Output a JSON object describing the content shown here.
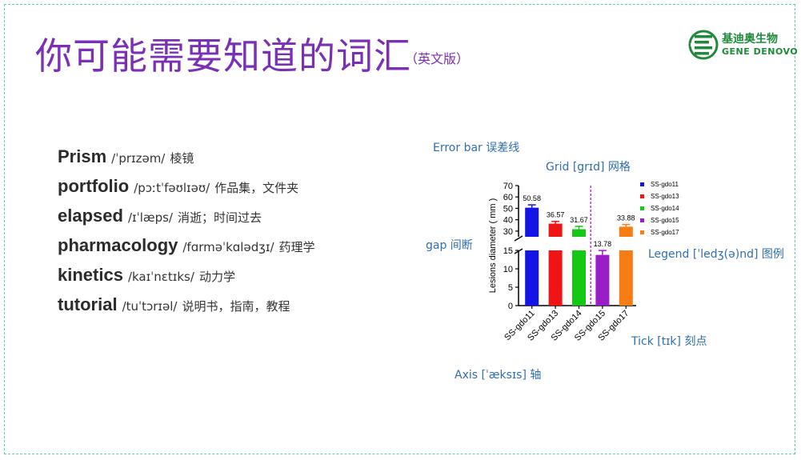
{
  "slide": {
    "title": "你可能需要知道的词汇",
    "subtitle": "（英文版）",
    "logo": {
      "cn": "基迪奥生物",
      "en": "GENE DENOVO",
      "icon": "gene-denovo-logo-icon"
    }
  },
  "vocabulary": [
    {
      "word": "Prism",
      "phonetic": "/ˈprɪzəm/",
      "meaning": "棱镜"
    },
    {
      "word": "portfolio",
      "phonetic": "/pɔːtˈfəʊlɪəʊ/",
      "meaning": "作品集，文件夹"
    },
    {
      "word": "elapsed",
      "phonetic": "/ɪˈlæps/",
      "meaning": "消逝；时间过去"
    },
    {
      "word": "pharmacology",
      "phonetic": "/fɑrməˈkɑlədʒɪ/",
      "meaning": "药理学"
    },
    {
      "word": "kinetics",
      "phonetic": "/kaɪˈnɛtɪks/",
      "meaning": "动力学"
    },
    {
      "word": "tutorial",
      "phonetic": "/tuˈtɔrɪəl/",
      "meaning": "说明书，指南，教程"
    }
  ],
  "annotations": {
    "error_bar": "Error bar 误差线",
    "grid": "Grid [grɪd] 网格",
    "gap": "gap 间断",
    "legend": "Legend  [ˈledʒ(ə)nd] 图例",
    "tick": "Tick [tɪk] 刻点",
    "axis": "Axis [ˈæksɪs] 轴"
  },
  "chart_data": {
    "type": "bar",
    "title": "",
    "xlabel": "",
    "ylabel": "Lesions diameter ( mm )",
    "categories": [
      "SS-gdo11",
      "SS-gdo13",
      "SS-gdo14",
      "SS-gdo15",
      "SS-gdo17"
    ],
    "values": [
      50.58,
      36.57,
      31.67,
      13.78,
      33.88
    ],
    "value_labels": [
      "50.58",
      "36.57",
      "31.67",
      "13.78",
      "33.88"
    ],
    "errors": [
      2.5,
      2.0,
      2.5,
      1.2,
      2.0
    ],
    "colors": [
      "#1414e6",
      "#f01414",
      "#14c814",
      "#9a1ec8",
      "#f57d14"
    ],
    "y_axis_break": {
      "lower": [
        0,
        15
      ],
      "upper": [
        25,
        70
      ]
    },
    "y_ticks_upper": [
      30,
      40,
      50,
      60,
      70
    ],
    "y_ticks_lower": [
      0,
      5,
      10,
      15
    ],
    "grid": false,
    "legend_position": "right",
    "legend": [
      "SS-gdo11",
      "SS-gdo13",
      "SS-gdo14",
      "SS-gdo15",
      "SS-gdo17"
    ],
    "divider_after_category": 2,
    "divider_color": "#b000d0"
  }
}
